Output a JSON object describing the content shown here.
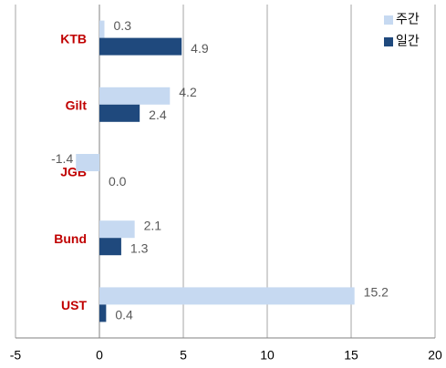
{
  "chart_data": {
    "type": "hbar",
    "categories": [
      "KTB",
      "Gilt",
      "JGB",
      "Bund",
      "UST"
    ],
    "series": [
      {
        "name": "주간",
        "color": "#c6d9f1",
        "values": [
          0.3,
          4.2,
          -1.4,
          2.1,
          15.2
        ],
        "value_labels": [
          "0.3",
          "4.2",
          "-1.4",
          "2.1",
          "15.2"
        ]
      },
      {
        "name": "일간",
        "color": "#1f497d",
        "values": [
          4.9,
          2.4,
          0,
          1.3,
          0.4
        ],
        "value_labels": [
          "4.9",
          "2.4",
          "0.0",
          "1.3",
          "0.4"
        ]
      }
    ],
    "xlim": [
      -5,
      20
    ],
    "xticks": [
      -5,
      0,
      5,
      10,
      15,
      20
    ],
    "grid": true,
    "legend": "top-right"
  }
}
